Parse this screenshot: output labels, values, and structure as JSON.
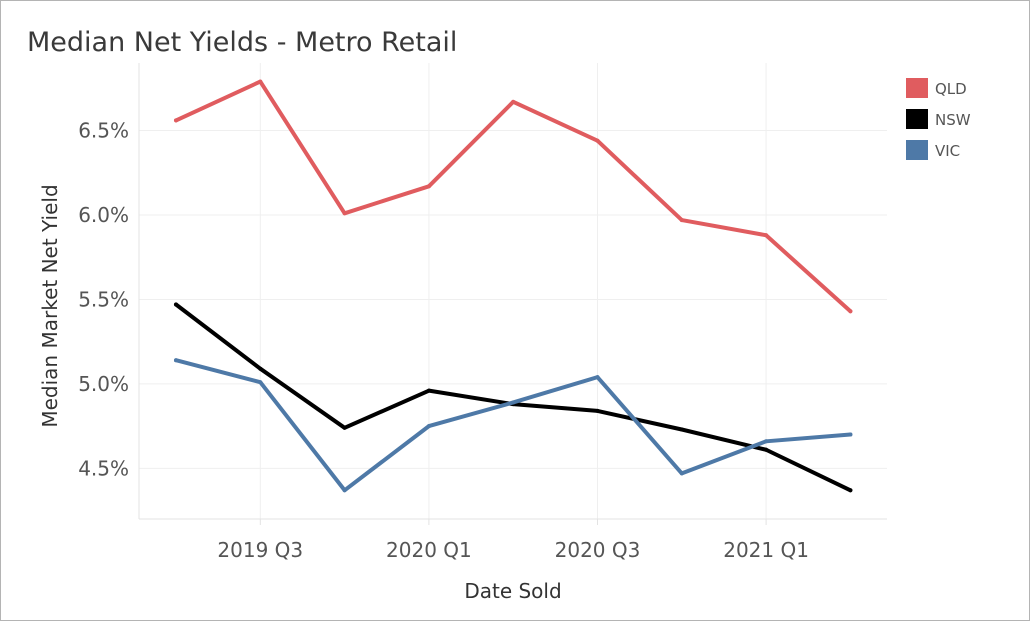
{
  "chart_data": {
    "type": "line",
    "title": "Median Net Yields - Metro Retail",
    "xlabel": "Date Sold",
    "ylabel": "Median Market Net Yield",
    "x": [
      "2019 Q2",
      "2019 Q3",
      "2019 Q4",
      "2020 Q1",
      "2020 Q2",
      "2020 Q3",
      "2020 Q4",
      "2021 Q1",
      "2021 Q2"
    ],
    "x_tick_labels": [
      "2019 Q3",
      "2020 Q1",
      "2020 Q3",
      "2021 Q1"
    ],
    "y_tick_labels": [
      "4.5%",
      "5.0%",
      "5.5%",
      "6.0%",
      "6.5%"
    ],
    "y_ticks": [
      4.5,
      5.0,
      5.5,
      6.0,
      6.5
    ],
    "ylim": [
      4.2,
      6.9
    ],
    "grid": true,
    "legend_position": "top-right",
    "series": [
      {
        "name": "QLD",
        "color": "#e05c5f",
        "values": [
          6.56,
          6.79,
          6.01,
          6.17,
          6.67,
          6.44,
          5.97,
          5.88,
          5.43
        ]
      },
      {
        "name": "NSW",
        "color": "#000000",
        "values": [
          5.47,
          5.09,
          4.74,
          4.96,
          4.88,
          4.84,
          4.73,
          4.61,
          4.37
        ]
      },
      {
        "name": "VIC",
        "color": "#4e79a7",
        "values": [
          5.14,
          5.01,
          4.37,
          4.75,
          4.89,
          5.04,
          4.47,
          4.66,
          4.7
        ]
      }
    ]
  }
}
